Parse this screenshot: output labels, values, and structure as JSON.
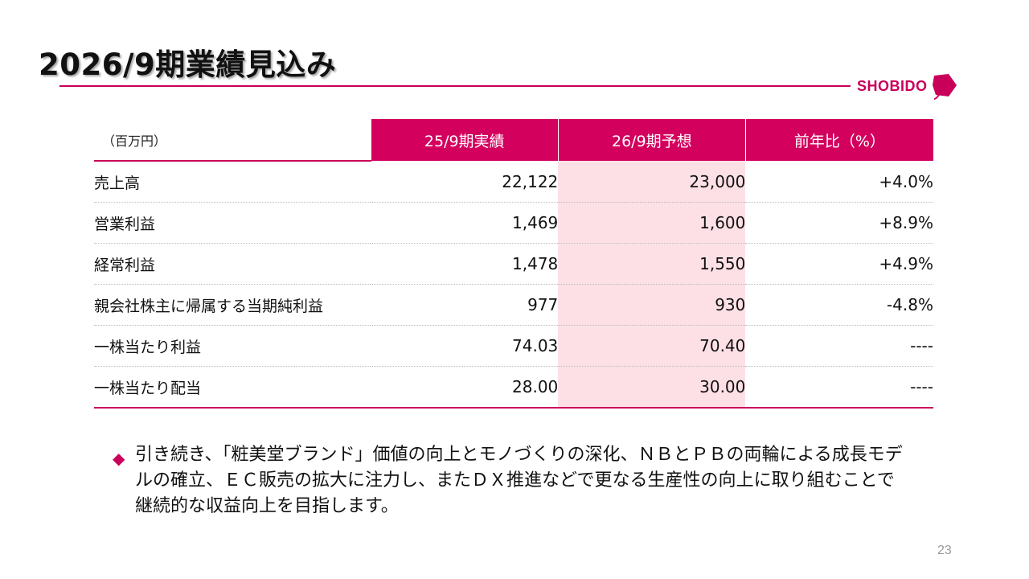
{
  "slide": {
    "title": "2026/9期業績見込み",
    "logo_text": "SHOBIDO",
    "page_number": "23",
    "accent_color": "#c8005a",
    "forecast_fill_color": "#fde0e6"
  },
  "table": {
    "unit_label": "（百万円）",
    "columns": [
      "25/9期実績",
      "26/9期予想",
      "前年比（%）"
    ],
    "rows": [
      {
        "label": "売上高",
        "actual": "22,122",
        "forecast": "23,000",
        "yoy": "+4.0%"
      },
      {
        "label": "営業利益",
        "actual": "1,469",
        "forecast": "1,600",
        "yoy": "+8.9%"
      },
      {
        "label": "経常利益",
        "actual": "1,478",
        "forecast": "1,550",
        "yoy": "+4.9%"
      },
      {
        "label": "親会社株主に帰属する当期純利益",
        "actual": "977",
        "forecast": "930",
        "yoy": "-4.8%"
      },
      {
        "label": "一株当たり利益",
        "actual": "74.03",
        "forecast": "70.40",
        "yoy": "----"
      },
      {
        "label": "一株当たり配当",
        "actual": "28.00",
        "forecast": "30.00",
        "yoy": "----"
      }
    ]
  },
  "note": {
    "bullet_icon": "diamond-bullet-icon",
    "text": "引き続き、「粧美堂ブランド」価値の向上とモノづくりの深化、ＮＢとＰＢの両輪による成長モデルの確立、ＥＣ販売の拡大に注力し、またＤＸ推進などで更なる生産性の向上に取り組むことで継続的な収益向上を目指します。"
  }
}
